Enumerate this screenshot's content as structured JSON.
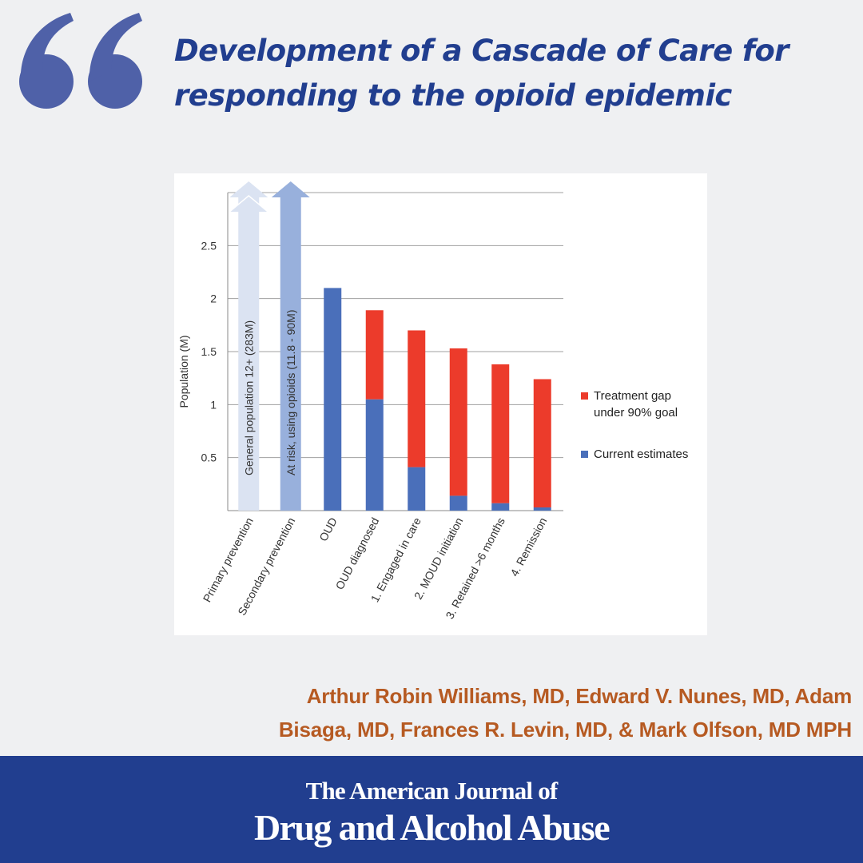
{
  "title": {
    "line1": "Development of a Cascade of Care for",
    "line2": "responding to the opioid epidemic"
  },
  "authors": {
    "line1": "Arthur Robin Williams, MD, Edward V. Nunes, MD, Adam",
    "line2": "Bisaga, MD, Frances R. Levin, MD, & Mark Olfson, MD MPH"
  },
  "footer": {
    "line1": "The American Journal of",
    "line2": "Drug and Alcohol Abuse"
  },
  "colors": {
    "brand_blue": "#213e8f",
    "author_orange": "#b65a22",
    "bar_blue": "#4a6fba",
    "gap_red": "#ec3b2b",
    "light_arrow": "#dbe3f2",
    "mid_arrow": "#98b0dc"
  },
  "icons": {
    "quote": "open-quote-icon"
  },
  "chart_data": {
    "type": "bar",
    "stacked": true,
    "ylabel": "Population (M)",
    "ylim": [
      0,
      3
    ],
    "yticks": [
      0.5,
      1,
      1.5,
      2,
      2.5
    ],
    "ytick_labels": [
      "0.5",
      "1",
      "1.5",
      "2",
      "2.5"
    ],
    "categories": [
      "Primary prevention",
      "Secondary prevention",
      "OUD",
      "OUD diagnosed",
      "1. Engaged in care",
      "2. MOUD initiation",
      "3. Retained >6 months",
      "4. Remission"
    ],
    "series": [
      {
        "name": "Current estimates",
        "values": [
          null,
          null,
          2.1,
          1.05,
          0.41,
          0.14,
          0.07,
          0.03
        ]
      },
      {
        "name": "Treatment gap under 90% goal",
        "values": [
          null,
          null,
          0,
          0.84,
          1.29,
          1.39,
          1.31,
          1.21
        ]
      }
    ],
    "arrows": [
      {
        "category": "Primary prevention",
        "label": "General population 12+ (283M)"
      },
      {
        "category": "Secondary prevention",
        "label": "At risk, using opioids (11.8 - 90M)"
      }
    ],
    "legend": [
      {
        "label_lines": [
          "Treatment gap",
          "under 90% goal"
        ],
        "color": "#ec3b2b"
      },
      {
        "label_lines": [
          "Current estimates"
        ],
        "color": "#4a6fba"
      }
    ],
    "legend_position": "right",
    "grid": true
  }
}
